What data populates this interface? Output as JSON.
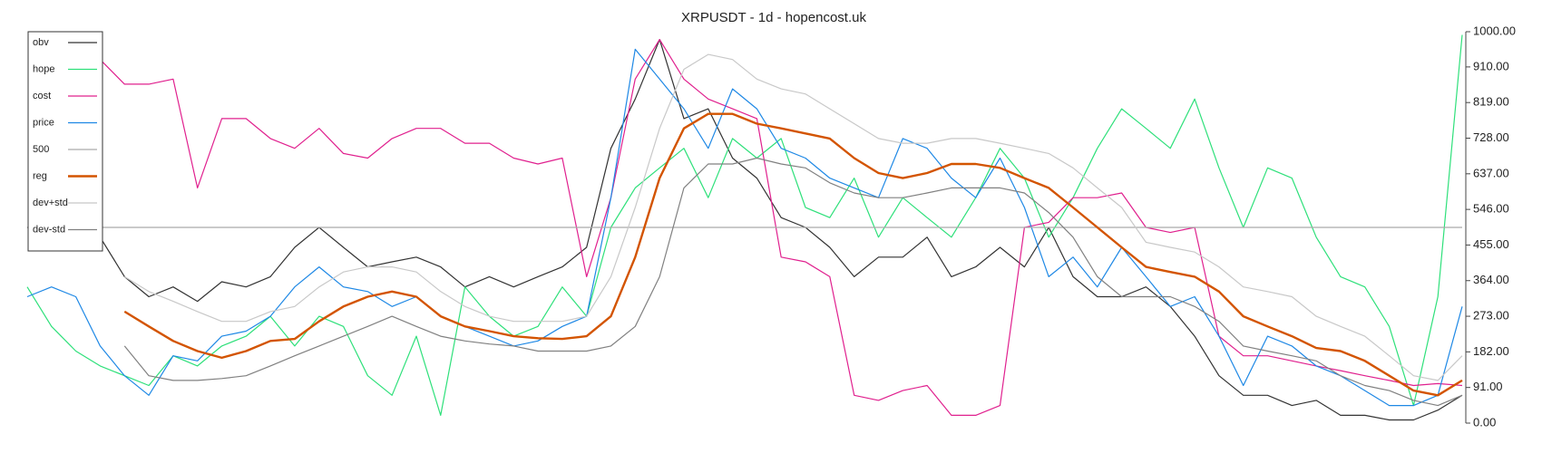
{
  "chart_data": {
    "type": "line",
    "title": "XRPUSDT - 1d - hopencost.uk",
    "ylim": [
      0,
      1000
    ],
    "yticks": [
      {
        "value": 0,
        "label": "0.00"
      },
      {
        "value": 91,
        "label": "91.00"
      },
      {
        "value": 182,
        "label": "182.00"
      },
      {
        "value": 273,
        "label": "273.00"
      },
      {
        "value": 364,
        "label": "364.00"
      },
      {
        "value": 455,
        "label": "455.00"
      },
      {
        "value": 546,
        "label": "546.00"
      },
      {
        "value": 637,
        "label": "637.00"
      },
      {
        "value": 728,
        "label": "728.00"
      },
      {
        "value": 819,
        "label": "819.00"
      },
      {
        "value": 910,
        "label": "910.00"
      },
      {
        "value": 1000,
        "label": "1000.00"
      }
    ],
    "legend": "upper left",
    "series": [
      {
        "name": "obv",
        "color": "#333333",
        "linewidth": 1.2,
        "values": [
          500,
          487,
          449,
          475,
          374,
          323,
          348,
          311,
          361,
          348,
          374,
          449,
          500,
          449,
          399,
          412,
          424,
          399,
          348,
          374,
          348,
          374,
          399,
          449,
          702,
          828,
          980,
          778,
          803,
          677,
          626,
          525,
          500,
          449,
          374,
          424,
          424,
          475,
          374,
          399,
          449,
          399,
          500,
          374,
          323,
          323,
          348,
          298,
          222,
          121,
          71,
          71,
          45,
          58,
          20,
          20,
          8,
          8,
          33,
          71
        ]
      },
      {
        "name": "hope",
        "color": "#2ee07a",
        "linewidth": 1.2,
        "values": [
          348,
          247,
          184,
          146,
          121,
          96,
          172,
          146,
          197,
          222,
          273,
          197,
          273,
          247,
          121,
          71,
          222,
          20,
          348,
          273,
          222,
          247,
          348,
          273,
          500,
          601,
          652,
          702,
          576,
          727,
          677,
          727,
          551,
          525,
          626,
          475,
          576,
          525,
          475,
          576,
          702,
          626,
          475,
          576,
          702,
          803,
          753,
          702,
          828,
          652,
          500,
          652,
          626,
          475,
          374,
          348,
          247,
          45,
          323,
          992
        ]
      },
      {
        "name": "cost",
        "color": "#e0208e",
        "linewidth": 1.2,
        "values": [
          null,
          null,
          null,
          929,
          866,
          866,
          879,
          601,
          778,
          778,
          727,
          702,
          753,
          689,
          677,
          727,
          753,
          753,
          715,
          715,
          677,
          662,
          677,
          374,
          576,
          879,
          980,
          879,
          828,
          803,
          778,
          424,
          412,
          374,
          71,
          58,
          83,
          96,
          20,
          20,
          45,
          500,
          513,
          576,
          576,
          588,
          500,
          487,
          500,
          222,
          172,
          172,
          159,
          146,
          134,
          121,
          109,
          96,
          101,
          96
        ]
      },
      {
        "name": "price",
        "color": "#1e88e5",
        "linewidth": 1.2,
        "values": [
          323,
          348,
          323,
          197,
          121,
          71,
          172,
          159,
          222,
          235,
          273,
          348,
          399,
          348,
          336,
          298,
          323,
          273,
          247,
          222,
          197,
          210,
          247,
          273,
          576,
          955,
          879,
          803,
          702,
          854,
          803,
          702,
          677,
          626,
          601,
          576,
          727,
          702,
          626,
          576,
          677,
          551,
          374,
          424,
          348,
          449,
          374,
          298,
          323,
          222,
          96,
          222,
          197,
          146,
          121,
          83,
          45,
          45,
          71,
          298
        ]
      },
      {
        "name": "500",
        "color": "#aaaaaa",
        "linewidth": 1.2,
        "values": [
          500,
          500,
          500,
          500,
          500,
          500,
          500,
          500,
          500,
          500,
          500,
          500,
          500,
          500,
          500,
          500,
          500,
          500,
          500,
          500,
          500,
          500,
          500,
          500,
          500,
          500,
          500,
          500,
          500,
          500,
          500,
          500,
          500,
          500,
          500,
          500,
          500,
          500,
          500,
          500,
          500,
          500,
          500,
          500,
          500,
          500,
          500,
          500,
          500,
          500,
          500,
          500,
          500,
          500,
          500,
          500,
          500,
          500,
          500,
          500
        ]
      },
      {
        "name": "reg",
        "color": "#d35400",
        "linewidth": 2.4,
        "values": [
          null,
          null,
          null,
          null,
          285,
          247,
          210,
          184,
          167,
          184,
          210,
          215,
          260,
          298,
          323,
          336,
          323,
          273,
          247,
          235,
          222,
          217,
          215,
          222,
          273,
          424,
          626,
          753,
          790,
          790,
          765,
          753,
          740,
          727,
          677,
          639,
          626,
          639,
          662,
          662,
          652,
          626,
          601,
          551,
          500,
          449,
          399,
          386,
          374,
          336,
          273,
          247,
          222,
          192,
          184,
          159,
          121,
          83,
          71,
          109
        ]
      },
      {
        "name": "dev+std",
        "color": "#c8c8c8",
        "linewidth": 1.2,
        "values": [
          null,
          null,
          null,
          null,
          374,
          336,
          311,
          285,
          260,
          260,
          285,
          298,
          348,
          386,
          399,
          399,
          386,
          336,
          298,
          273,
          260,
          260,
          260,
          273,
          374,
          551,
          753,
          904,
          942,
          929,
          879,
          854,
          841,
          803,
          765,
          727,
          715,
          715,
          727,
          727,
          715,
          702,
          689,
          652,
          601,
          551,
          462,
          449,
          437,
          399,
          348,
          336,
          323,
          273,
          247,
          222,
          172,
          121,
          109,
          172
        ]
      },
      {
        "name": "dev-std",
        "color": "#808080",
        "linewidth": 1.2,
        "values": [
          null,
          null,
          null,
          null,
          197,
          121,
          109,
          109,
          114,
          121,
          146,
          172,
          197,
          222,
          247,
          273,
          247,
          222,
          210,
          202,
          197,
          184,
          184,
          184,
          197,
          247,
          374,
          601,
          662,
          662,
          677,
          662,
          652,
          614,
          588,
          576,
          576,
          588,
          601,
          601,
          601,
          588,
          538,
          475,
          374,
          323,
          323,
          323,
          298,
          260,
          197,
          184,
          172,
          159,
          121,
          96,
          83,
          58,
          45,
          71
        ]
      }
    ]
  }
}
